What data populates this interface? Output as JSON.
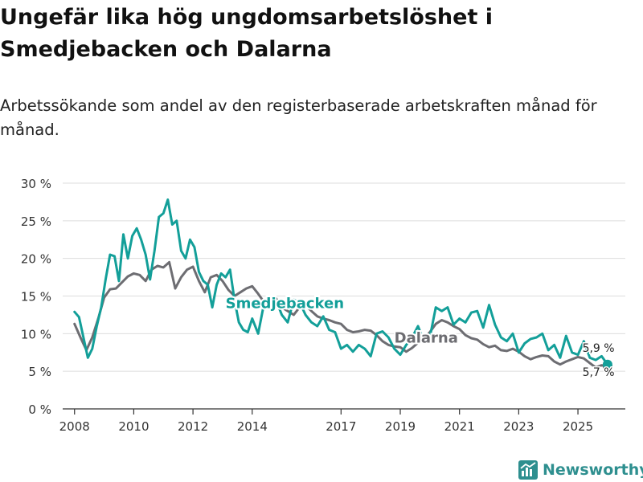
{
  "title": "Ungefär lika hög ungdomsarbetslöshet i Smedjebacken och Dalarna",
  "subtitle": "Arbetssökande som andel av den registerbaserade arbetskraften månad för månad.",
  "brand": "Newsworthy",
  "colors": {
    "smedjebacken": "#139f99",
    "dalarna": "#6d6d72",
    "grid": "#dddddd",
    "axis": "#333333"
  },
  "chart_data": {
    "type": "line",
    "title": "Ungefär lika hög ungdomsarbetslöshet i Smedjebacken och Dalarna",
    "xlabel": "",
    "ylabel": "",
    "ylim": [
      0,
      30
    ],
    "xlim": [
      2007.6,
      2026.6
    ],
    "y_ticks": [
      0,
      5,
      10,
      15,
      20,
      25,
      30
    ],
    "y_tick_labels": [
      "0 %",
      "5 %",
      "10 %",
      "15 %",
      "20 %",
      "25 %",
      "30 %"
    ],
    "x_ticks": [
      2008,
      2010,
      2012,
      2014,
      2017,
      2019,
      2021,
      2023,
      2025
    ],
    "x_tick_labels": [
      "2008",
      "2010",
      "2012",
      "2014",
      "2017",
      "2019",
      "2021",
      "2023",
      "2025"
    ],
    "series": [
      {
        "name": "Dalarna",
        "label": "Dalarna",
        "last_label": "5,7 %",
        "x": [
          2008.0,
          2008.2,
          2008.4,
          2008.6,
          2008.8,
          2009.0,
          2009.2,
          2009.4,
          2009.6,
          2009.8,
          2010.0,
          2010.2,
          2010.4,
          2010.6,
          2010.8,
          2011.0,
          2011.2,
          2011.4,
          2011.6,
          2011.8,
          2012.0,
          2012.2,
          2012.4,
          2012.6,
          2012.8,
          2013.0,
          2013.2,
          2013.4,
          2013.6,
          2013.8,
          2014.0,
          2014.2,
          2014.4,
          2014.6,
          2014.8,
          2015.0,
          2015.2,
          2015.4,
          2015.6,
          2015.8,
          2016.0,
          2016.2,
          2016.4,
          2016.6,
          2016.8,
          2017.0,
          2017.2,
          2017.4,
          2017.6,
          2017.8,
          2018.0,
          2018.2,
          2018.4,
          2018.6,
          2018.8,
          2019.0,
          2019.2,
          2019.4,
          2019.6,
          2019.8,
          2020.0,
          2020.2,
          2020.4,
          2020.6,
          2020.8,
          2021.0,
          2021.2,
          2021.4,
          2021.6,
          2021.8,
          2022.0,
          2022.2,
          2022.4,
          2022.6,
          2022.8,
          2023.0,
          2023.2,
          2023.4,
          2023.6,
          2023.8,
          2024.0,
          2024.2,
          2024.4,
          2024.6,
          2024.8,
          2025.0,
          2025.2,
          2025.4,
          2025.6,
          2025.8,
          2026.0
        ],
        "values": [
          11.3,
          9.5,
          7.8,
          9.5,
          12.0,
          14.8,
          15.9,
          16.0,
          16.8,
          17.6,
          18.0,
          17.8,
          17.0,
          18.5,
          19.0,
          18.8,
          19.5,
          16.0,
          17.5,
          18.5,
          18.9,
          17.0,
          15.5,
          17.5,
          17.8,
          17.0,
          15.8,
          15.0,
          15.5,
          16.0,
          16.3,
          15.3,
          14.2,
          13.8,
          14.7,
          13.5,
          13.0,
          12.5,
          13.5,
          13.8,
          13.0,
          12.3,
          12.0,
          11.8,
          11.5,
          11.3,
          10.5,
          10.2,
          10.3,
          10.5,
          10.4,
          9.8,
          9.0,
          8.5,
          8.3,
          8.2,
          7.6,
          8.1,
          8.8,
          9.3,
          10.2,
          11.3,
          11.8,
          11.5,
          11.0,
          10.6,
          9.8,
          9.4,
          9.2,
          8.6,
          8.2,
          8.4,
          7.8,
          7.7,
          8.0,
          7.6,
          7.0,
          6.6,
          6.9,
          7.1,
          7.0,
          6.3,
          5.9,
          6.3,
          6.6,
          6.9,
          6.7,
          6.1,
          5.5,
          5.8,
          5.7
        ]
      },
      {
        "name": "Smedjebacken",
        "label": "Smedjebacken",
        "last_label": "5,9 %",
        "x": [
          2008.0,
          2008.15,
          2008.3,
          2008.45,
          2008.6,
          2008.75,
          2008.9,
          2009.05,
          2009.2,
          2009.35,
          2009.5,
          2009.65,
          2009.8,
          2009.95,
          2010.1,
          2010.25,
          2010.4,
          2010.55,
          2010.7,
          2010.85,
          2011.0,
          2011.15,
          2011.3,
          2011.45,
          2011.6,
          2011.75,
          2011.9,
          2012.05,
          2012.2,
          2012.35,
          2012.5,
          2012.65,
          2012.8,
          2012.95,
          2013.1,
          2013.25,
          2013.4,
          2013.55,
          2013.7,
          2013.85,
          2014.0,
          2014.2,
          2014.4,
          2014.6,
          2014.8,
          2015.0,
          2015.2,
          2015.4,
          2015.6,
          2015.8,
          2016.0,
          2016.2,
          2016.4,
          2016.6,
          2016.8,
          2017.0,
          2017.2,
          2017.4,
          2017.6,
          2017.8,
          2018.0,
          2018.2,
          2018.4,
          2018.6,
          2018.8,
          2019.0,
          2019.2,
          2019.4,
          2019.6,
          2019.8,
          2020.0,
          2020.2,
          2020.4,
          2020.6,
          2020.8,
          2021.0,
          2021.2,
          2021.4,
          2021.6,
          2021.8,
          2022.0,
          2022.2,
          2022.4,
          2022.6,
          2022.8,
          2023.0,
          2023.2,
          2023.4,
          2023.6,
          2023.8,
          2024.0,
          2024.2,
          2024.4,
          2024.6,
          2024.8,
          2025.0,
          2025.2,
          2025.4,
          2025.6,
          2025.8,
          2026.0
        ],
        "values": [
          12.9,
          12.2,
          9.5,
          6.8,
          8.0,
          11.0,
          13.5,
          17.2,
          20.5,
          20.3,
          17.0,
          23.2,
          20.0,
          23.0,
          24.0,
          22.5,
          20.5,
          17.2,
          21.0,
          25.5,
          26.0,
          27.8,
          24.5,
          25.0,
          21.0,
          20.0,
          22.5,
          21.5,
          18.2,
          17.0,
          16.5,
          13.5,
          16.5,
          18.0,
          17.5,
          18.5,
          14.5,
          11.5,
          10.5,
          10.2,
          12.0,
          10.0,
          14.0,
          14.0,
          14.5,
          12.5,
          11.5,
          14.5,
          14.2,
          12.5,
          11.5,
          11.0,
          12.3,
          10.5,
          10.2,
          8.0,
          8.5,
          7.6,
          8.5,
          8.0,
          7.0,
          10.0,
          10.3,
          9.5,
          8.0,
          7.2,
          8.5,
          9.5,
          11.0,
          9.0,
          9.5,
          13.5,
          13.0,
          13.5,
          11.2,
          12.0,
          11.5,
          12.8,
          13.0,
          10.8,
          13.8,
          11.2,
          9.5,
          9.0,
          10.0,
          7.5,
          8.7,
          9.3,
          9.5,
          10.0,
          7.8,
          8.5,
          6.8,
          9.7,
          7.5,
          7.2,
          9.0,
          6.8,
          6.5,
          7.0,
          5.9
        ]
      }
    ]
  }
}
